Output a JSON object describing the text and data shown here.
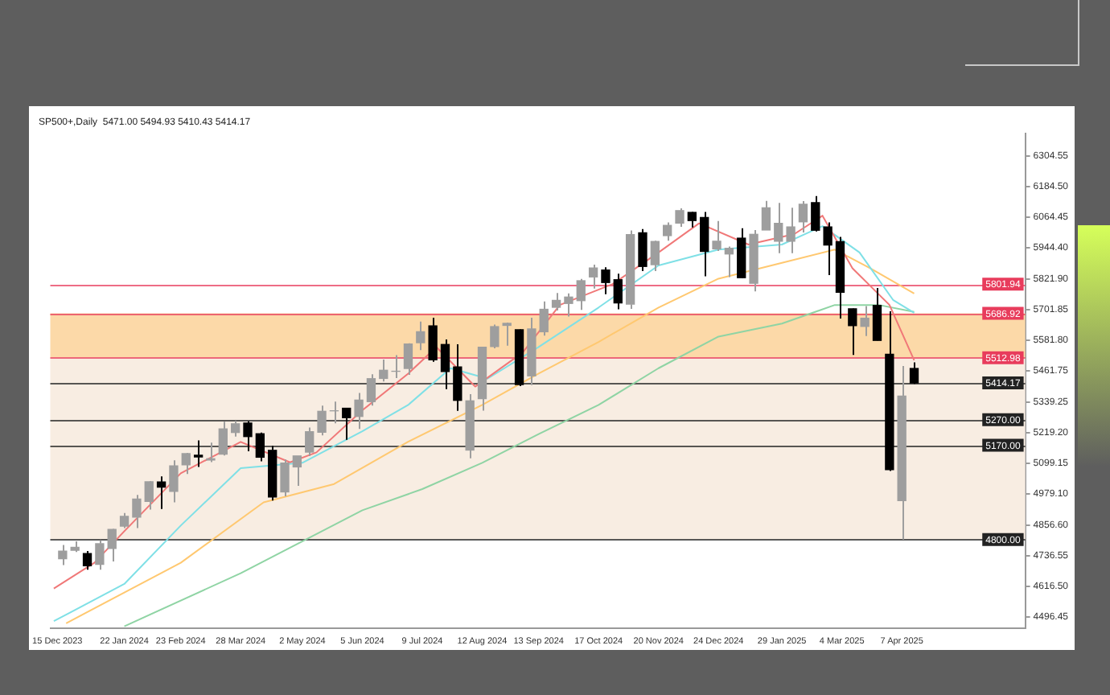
{
  "chart_data": {
    "type": "candlestick",
    "title": "SP500+,Daily  5471.00 5494.93 5410.43 5414.17",
    "colors": [
      "#9e9e9e",
      "#9e9e9e",
      "#000000",
      "#9e9e9e",
      "#9e9e9e",
      "#9e9e9e",
      "#9e9e9e",
      "#9e9e9e",
      "#000000",
      "#9e9e9e",
      "#9e9e9e",
      "#000000",
      "#9e9e9e",
      "#9e9e9e",
      "#9e9e9e",
      "#000000",
      "#000000",
      "#000000",
      "#9e9e9e",
      "#9e9e9e",
      "#9e9e9e",
      "#9e9e9e",
      "#9e9e9e",
      "#000000",
      "#9e9e9e",
      "#9e9e9e",
      "#9e9e9e",
      "#9e9e9e",
      "#9e9e9e",
      "#9e9e9e",
      "#000000",
      "#000000",
      "#000000",
      "#9e9e9e",
      "#9e9e9e",
      "#9e9e9e",
      "#9e9e9e",
      "#000000",
      "#9e9e9e",
      "#9e9e9e",
      "#9e9e9e",
      "#9e9e9e",
      "#9e9e9e",
      "#9e9e9e",
      "#000000",
      "#000000",
      "#9e9e9e",
      "#000000",
      "#9e9e9e",
      "#9e9e9e",
      "#9e9e9e",
      "#000000",
      "#000000",
      "#9e9e9e",
      "#9e9e9e",
      "#000000",
      "#9e9e9e",
      "#9e9e9e",
      "#9e9e9e",
      "#9e9e9e",
      "#9e9e9e",
      "#000000",
      "#000000",
      "#000000",
      "#000000",
      "#9e9e9e",
      "#000000",
      "#000000",
      "#9e9e9e",
      "#000000"
    ],
    "x": [
      "2023-12-18",
      "2023-12-25",
      "2024-01-01",
      "2024-01-08",
      "2024-01-15",
      "2024-01-22",
      "2024-01-29",
      "2024-02-05",
      "2024-02-12",
      "2024-02-19",
      "2024-02-26",
      "2024-03-04",
      "2024-03-11",
      "2024-03-18",
      "2024-03-25",
      "2024-04-01",
      "2024-04-08",
      "2024-04-15",
      "2024-04-22",
      "2024-04-29",
      "2024-05-06",
      "2024-05-13",
      "2024-05-20",
      "2024-05-27",
      "2024-06-03",
      "2024-06-10",
      "2024-06-17",
      "2024-06-24",
      "2024-07-01",
      "2024-07-08",
      "2024-07-15",
      "2024-07-22",
      "2024-07-29",
      "2024-08-05",
      "2024-08-12",
      "2024-08-19",
      "2024-08-26",
      "2024-09-02",
      "2024-09-09",
      "2024-09-16",
      "2024-09-23",
      "2024-09-30",
      "2024-10-07",
      "2024-10-14",
      "2024-10-21",
      "2024-10-28",
      "2024-11-04",
      "2024-11-11",
      "2024-11-18",
      "2024-11-25",
      "2024-12-02",
      "2024-12-09",
      "2024-12-16",
      "2024-12-23",
      "2024-12-30",
      "2025-01-06",
      "2025-01-13",
      "2025-01-20",
      "2025-01-27",
      "2025-02-03",
      "2025-02-10",
      "2025-02-17",
      "2025-02-24",
      "2025-03-03",
      "2025-03-10",
      "2025-03-17",
      "2025-03-24",
      "2025-03-31",
      "2025-04-07",
      "2025-04-14"
    ],
    "ohlc": [
      [
        4725,
        4779,
        4700,
        4755
      ],
      [
        4758,
        4793,
        4751,
        4770
      ],
      [
        4745,
        4755,
        4682,
        4697
      ],
      [
        4703,
        4798,
        4682,
        4784
      ],
      [
        4765,
        4842,
        4714,
        4840
      ],
      [
        4853,
        4904,
        4845,
        4891
      ],
      [
        4888,
        4975,
        4845,
        4959
      ],
      [
        4950,
        5030,
        4918,
        5027
      ],
      [
        5026,
        5048,
        4920,
        5006
      ],
      [
        4989,
        5111,
        4946,
        5089
      ],
      [
        5093,
        5140,
        5057,
        5137
      ],
      [
        5131,
        5189,
        5085,
        5124
      ],
      [
        5112,
        5180,
        5104,
        5117
      ],
      [
        5135,
        5262,
        5130,
        5234
      ],
      [
        5220,
        5265,
        5204,
        5254
      ],
      [
        5257,
        5264,
        5146,
        5204
      ],
      [
        5215,
        5220,
        5107,
        5123
      ],
      [
        5150,
        5168,
        4953,
        4967
      ],
      [
        4987,
        5114,
        4970,
        5100
      ],
      [
        5085,
        5128,
        5011,
        5128
      ],
      [
        5143,
        5239,
        5127,
        5223
      ],
      [
        5221,
        5325,
        5209,
        5303
      ],
      [
        5305,
        5341,
        5256,
        5305
      ],
      [
        5315,
        5315,
        5191,
        5278
      ],
      [
        5283,
        5375,
        5234,
        5347
      ],
      [
        5341,
        5448,
        5325,
        5431
      ],
      [
        5432,
        5506,
        5420,
        5464
      ],
      [
        5460,
        5523,
        5433,
        5460
      ],
      [
        5471,
        5570,
        5446,
        5567
      ],
      [
        5572,
        5655,
        5543,
        5615
      ],
      [
        5638,
        5670,
        5497,
        5505
      ],
      [
        5565,
        5585,
        5390,
        5459
      ],
      [
        5477,
        5566,
        5305,
        5346
      ],
      [
        5151,
        5370,
        5119,
        5344
      ],
      [
        5353,
        5556,
        5306,
        5554
      ],
      [
        5557,
        5643,
        5550,
        5635
      ],
      [
        5640,
        5651,
        5560,
        5648
      ],
      [
        5623,
        5624,
        5402,
        5408
      ],
      [
        5442,
        5670,
        5406,
        5626
      ],
      [
        5615,
        5734,
        5600,
        5703
      ],
      [
        5711,
        5767,
        5698,
        5738
      ],
      [
        5726,
        5765,
        5675,
        5751
      ],
      [
        5737,
        5822,
        5701,
        5815
      ],
      [
        5830,
        5878,
        5784,
        5865
      ],
      [
        5857,
        5868,
        5762,
        5808
      ],
      [
        5819,
        5843,
        5703,
        5728
      ],
      [
        5723,
        6012,
        5705,
        5996
      ],
      [
        6003,
        6018,
        5853,
        5871
      ],
      [
        5878,
        5972,
        5853,
        5969
      ],
      [
        5992,
        6044,
        5972,
        6032
      ],
      [
        6041,
        6099,
        6026,
        6090
      ],
      [
        6083,
        6085,
        6024,
        6051
      ],
      [
        6063,
        6085,
        5832,
        5930
      ],
      [
        5940,
        6049,
        5932,
        5970
      ],
      [
        5920,
        5949,
        5829,
        5942
      ],
      [
        5982,
        6021,
        5825,
        5827
      ],
      [
        5805,
        6014,
        5773,
        5997
      ],
      [
        6014,
        6128,
        6014,
        6101
      ],
      [
        5970,
        6120,
        5923,
        6040
      ],
      [
        5970,
        6101,
        5923,
        6026
      ],
      [
        6046,
        6127,
        6004,
        6115
      ],
      [
        6121,
        6147,
        6008,
        6013
      ],
      [
        6026,
        6044,
        5837,
        5955
      ],
      [
        5968,
        5987,
        5667,
        5770
      ],
      [
        5705,
        5706,
        5524,
        5639
      ],
      [
        5636,
        5716,
        5598,
        5668
      ],
      [
        5718,
        5787,
        5580,
        5581
      ],
      [
        5527,
        5695,
        5069,
        5074
      ],
      [
        4953,
        5481,
        4800,
        5363
      ],
      [
        5471,
        5494.93,
        5410.43,
        5414.17
      ]
    ],
    "series": [
      {
        "type": "line",
        "color": "#f07878",
        "x": [
          "2023-12-13",
          "2024-01-05",
          "2024-01-22",
          "2024-02-23",
          "2024-03-28",
          "2024-04-25",
          "2024-05-10",
          "2024-06-05",
          "2024-07-01",
          "2024-07-17",
          "2024-08-08",
          "2024-09-04",
          "2024-09-25",
          "2024-10-25",
          "2024-11-20",
          "2024-12-13",
          "2025-01-10",
          "2025-02-05",
          "2025-02-21",
          "2025-03-10",
          "2025-03-31",
          "2025-04-14"
        ],
        "values": [
          4608,
          4709,
          4833,
          5060,
          5183,
          5103,
          5142,
          5307,
          5451,
          5555,
          5400,
          5534,
          5720,
          5802,
          5926,
          6040,
          5957,
          5998,
          6070,
          5864,
          5720,
          5503
        ]
      },
      {
        "type": "line",
        "color": "#7fe0e6",
        "x": [
          "2023-12-13",
          "2024-01-22",
          "2024-02-23",
          "2024-03-28",
          "2024-05-02",
          "2024-06-05",
          "2024-07-01",
          "2024-07-25",
          "2024-08-15",
          "2024-09-13",
          "2024-10-17",
          "2024-11-20",
          "2024-12-24",
          "2025-01-29",
          "2025-02-21",
          "2025-03-14",
          "2025-04-02",
          "2025-04-14"
        ],
        "values": [
          4480,
          4626,
          4855,
          5080,
          5101,
          5225,
          5328,
          5472,
          5431,
          5555,
          5710,
          5875,
          5937,
          5957,
          6029,
          5926,
          5740,
          5689
        ]
      },
      {
        "type": "line",
        "color": "#ffc870",
        "x": [
          "2023-12-20",
          "2024-02-23",
          "2024-04-10",
          "2024-05-20",
          "2024-07-01",
          "2024-08-12",
          "2024-09-13",
          "2024-10-17",
          "2024-11-20",
          "2024-12-24",
          "2025-01-29",
          "2025-02-28",
          "2025-03-20",
          "2025-04-14"
        ],
        "values": [
          4472,
          4709,
          4946,
          5018,
          5184,
          5328,
          5451,
          5575,
          5710,
          5823,
          5885,
          5937,
          5864,
          5765
        ]
      },
      {
        "type": "line",
        "color": "#8fd4a4",
        "x": [
          "2024-01-22",
          "2024-03-28",
          "2024-06-05",
          "2024-07-09",
          "2024-08-12",
          "2024-09-13",
          "2024-10-17",
          "2024-11-20",
          "2024-12-24",
          "2025-01-29",
          "2025-02-28",
          "2025-03-25",
          "2025-04-14"
        ],
        "values": [
          4460,
          4668,
          4915,
          4998,
          5101,
          5214,
          5328,
          5472,
          5596,
          5647,
          5720,
          5720,
          5693
        ]
      }
    ],
    "xlim": [
      "2023-12-11",
      "2025-06-16"
    ],
    "xticks": [
      {
        "value": "2023-12-15",
        "label": "15 Dec 2023"
      },
      {
        "value": "2024-01-22",
        "label": "22 Jan 2024"
      },
      {
        "value": "2024-02-23",
        "label": "23 Feb 2024"
      },
      {
        "value": "2024-03-28",
        "label": "28 Mar 2024"
      },
      {
        "value": "2024-05-02",
        "label": "2 May 2024"
      },
      {
        "value": "2024-06-05",
        "label": "5 Jun 2024"
      },
      {
        "value": "2024-07-09",
        "label": "9 Jul 2024"
      },
      {
        "value": "2024-08-12",
        "label": "12 Aug 2024"
      },
      {
        "value": "2024-09-13",
        "label": "13 Sep 2024"
      },
      {
        "value": "2024-10-17",
        "label": "17 Oct 2024"
      },
      {
        "value": "2024-11-20",
        "label": "20 Nov 2024"
      },
      {
        "value": "2024-12-24",
        "label": "24 Dec 2024"
      },
      {
        "value": "2025-01-29",
        "label": "29 Jan 2025"
      },
      {
        "value": "2025-03-04",
        "label": "4 Mar 2025"
      },
      {
        "value": "2025-04-07",
        "label": "7 Apr 2025"
      }
    ],
    "ylim": [
      4453,
      6391
    ],
    "yticks": [
      {
        "value": 4496.45,
        "label": "4496.45"
      },
      {
        "value": 4616.5,
        "label": "4616.50"
      },
      {
        "value": 4736.55,
        "label": "4736.55"
      },
      {
        "value": 4856.6,
        "label": "4856.60"
      },
      {
        "value": 4979.1,
        "label": "4979.10"
      },
      {
        "value": 5099.15,
        "label": "5099.15"
      },
      {
        "value": 5219.2,
        "label": "5219.20"
      },
      {
        "value": 5339.25,
        "label": "5339.25"
      },
      {
        "value": 5461.75,
        "label": "5461.75"
      },
      {
        "value": 5581.8,
        "label": "5581.80"
      },
      {
        "value": 5701.85,
        "label": "5701.85"
      },
      {
        "value": 5821.9,
        "label": "5821.90"
      },
      {
        "value": 5944.4,
        "label": "5944.40"
      },
      {
        "value": 6064.45,
        "label": "6064.45"
      },
      {
        "value": 6184.5,
        "label": "6184.50"
      },
      {
        "value": 6304.55,
        "label": "6304.55"
      }
    ],
    "bands": [
      {
        "axis": "y",
        "from": 5512.98,
        "to": 5686.92,
        "color": "#fcd9a8"
      },
      {
        "axis": "y",
        "from": 4800,
        "to": 5512.98,
        "color": "#f8ede2"
      }
    ],
    "ref_lines": [
      {
        "axis": "y",
        "value": 5801.94,
        "label": "5801.94",
        "color": "#e83c5c"
      },
      {
        "axis": "y",
        "value": 5686.92,
        "label": "5686.92",
        "color": "#e83c5c"
      },
      {
        "axis": "y",
        "value": 5512.98,
        "label": "5512.98",
        "color": "#e83c5c"
      },
      {
        "axis": "y",
        "value": 5414.17,
        "label": "5414.17",
        "color": "#222222"
      },
      {
        "axis": "y",
        "value": 5270,
        "label": "5270.00",
        "color": "#222222"
      },
      {
        "axis": "y",
        "value": 5170,
        "label": "5170.00",
        "color": "#222222"
      },
      {
        "axis": "y",
        "value": 4800,
        "label": "4800.00",
        "color": "#222222"
      }
    ],
    "grid": false
  }
}
